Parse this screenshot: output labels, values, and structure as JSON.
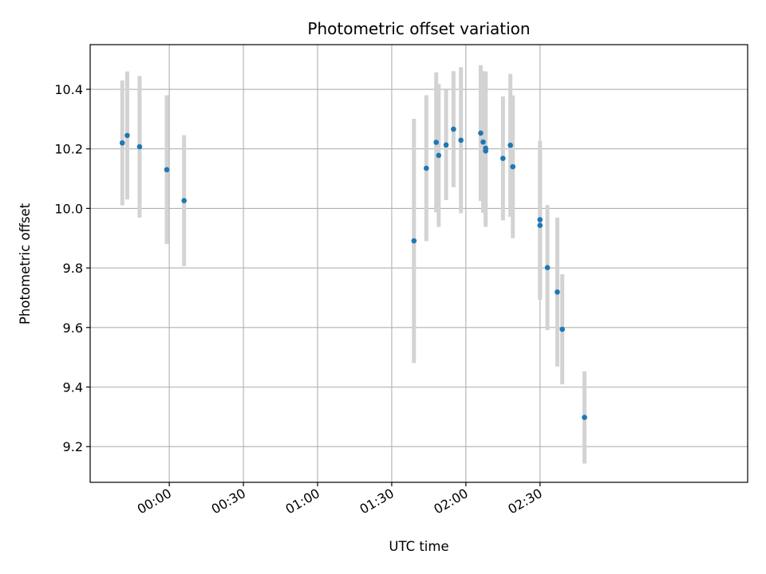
{
  "chart_data": {
    "type": "scatter",
    "title": "Photometric offset variation",
    "xlabel": "UTC time",
    "ylabel": "Photometric offset",
    "x_axis_kind": "time",
    "xlim": [
      "23:28",
      "03:54"
    ],
    "ylim": [
      9.08,
      10.55
    ],
    "x_ticks": [
      "00:00",
      "00:30",
      "01:00",
      "01:30",
      "02:00",
      "02:30"
    ],
    "y_ticks": [
      "9.2",
      "9.4",
      "9.6",
      "9.8",
      "10.0",
      "10.2",
      "10.4"
    ],
    "grid": true,
    "marker_color": "#1f77b4",
    "errorbar_color": "#d3d3d3",
    "series": [
      {
        "points": [
          {
            "t": "23:41",
            "y": 10.22,
            "err": 0.21
          },
          {
            "t": "23:43",
            "y": 10.245,
            "err": 0.215
          },
          {
            "t": "23:48",
            "y": 10.207,
            "err": 0.238
          },
          {
            "t": "23:59",
            "y": 10.13,
            "err": 0.25
          },
          {
            "t": "00:06",
            "y": 10.026,
            "err": 0.22
          },
          {
            "t": "01:39",
            "y": 9.891,
            "err": 0.41
          },
          {
            "t": "01:44",
            "y": 10.135,
            "err": 0.245
          },
          {
            "t": "01:48",
            "y": 10.222,
            "err": 0.235
          },
          {
            "t": "01:49",
            "y": 10.178,
            "err": 0.24
          },
          {
            "t": "01:52",
            "y": 10.213,
            "err": 0.185
          },
          {
            "t": "01:55",
            "y": 10.266,
            "err": 0.195
          },
          {
            "t": "01:58",
            "y": 10.229,
            "err": 0.245
          },
          {
            "t": "02:06",
            "y": 10.253,
            "err": 0.228
          },
          {
            "t": "02:07",
            "y": 10.223,
            "err": 0.238
          },
          {
            "t": "02:08",
            "y": 10.193,
            "err": 0.255
          },
          {
            "t": "02:08",
            "y": 10.202,
            "err": 0.258
          },
          {
            "t": "02:15",
            "y": 10.168,
            "err": 0.208
          },
          {
            "t": "02:18",
            "y": 10.212,
            "err": 0.24
          },
          {
            "t": "02:19",
            "y": 10.14,
            "err": 0.24
          },
          {
            "t": "02:30",
            "y": 9.943,
            "err": 0.25
          },
          {
            "t": "02:30",
            "y": 9.962,
            "err": 0.265
          },
          {
            "t": "02:33",
            "y": 9.801,
            "err": 0.21
          },
          {
            "t": "02:37",
            "y": 9.719,
            "err": 0.25
          },
          {
            "t": "02:39",
            "y": 9.594,
            "err": 0.185
          },
          {
            "t": "02:48",
            "y": 9.298,
            "err": 0.155
          }
        ]
      }
    ]
  }
}
